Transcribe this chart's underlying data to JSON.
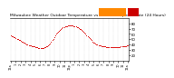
{
  "title": "Milwaukee Weather Outdoor Temperature vs Heat Index per Minute (24 Hours)",
  "legend_temp_color": "#cc0000",
  "legend_heat_color": "#ff8800",
  "bg_color": "#ffffff",
  "dot_color": "#dd0000",
  "dot_size": 0.6,
  "ylim": [
    10,
    90
  ],
  "yticks": [
    20,
    30,
    40,
    50,
    60,
    70,
    80
  ],
  "ytick_labels": [
    "20",
    "30",
    "40",
    "50",
    "60",
    "70",
    "80"
  ],
  "title_fontsize": 3.2,
  "tick_fontsize": 2.8,
  "xtick_labels": [
    "12a",
    "1",
    "2",
    "3",
    "4",
    "5",
    "6",
    "7",
    "8",
    "9",
    "10",
    "11",
    "12p",
    "1",
    "2",
    "3",
    "4",
    "5",
    "6",
    "7",
    "8",
    "9",
    "10",
    "11",
    "12a"
  ],
  "temp_data": [
    57,
    56,
    55,
    54,
    53,
    52,
    51,
    50,
    49,
    48,
    47,
    46,
    45,
    44,
    43,
    42,
    41,
    40,
    39,
    38,
    38,
    37,
    37,
    36,
    36,
    35,
    35,
    35,
    34,
    34,
    34,
    34,
    34,
    34,
    35,
    35,
    36,
    37,
    38,
    40,
    42,
    45,
    48,
    51,
    54,
    57,
    60,
    62,
    64,
    66,
    68,
    70,
    71,
    72,
    73,
    74,
    75,
    75,
    76,
    76,
    76,
    76,
    76,
    76,
    75,
    75,
    74,
    73,
    72,
    71,
    70,
    69,
    68,
    66,
    64,
    62,
    60,
    58,
    56,
    54,
    52,
    50,
    48,
    46,
    44,
    43,
    42,
    41,
    40,
    39,
    38,
    38,
    37,
    37,
    36,
    36,
    36,
    35,
    35,
    35,
    35,
    35,
    35,
    35,
    35,
    35,
    35,
    35,
    35,
    35,
    35,
    35,
    36,
    36,
    36,
    37,
    37,
    37,
    38,
    38
  ],
  "heat_data": [
    57,
    56,
    55,
    54,
    53,
    52,
    51,
    50,
    49,
    48,
    47,
    46,
    45,
    44,
    43,
    42,
    41,
    40,
    39,
    38,
    38,
    37,
    37,
    36,
    36,
    35,
    35,
    35,
    34,
    34,
    34,
    34,
    34,
    34,
    35,
    35,
    36,
    37,
    38,
    40,
    42,
    45,
    48,
    51,
    54,
    57,
    60,
    62,
    64,
    66,
    68,
    70,
    71,
    72,
    73,
    74,
    75,
    75,
    76,
    76,
    76,
    76,
    76,
    76,
    75,
    75,
    74,
    73,
    72,
    71,
    70,
    69,
    68,
    66,
    64,
    62,
    60,
    58,
    56,
    54,
    52,
    50,
    48,
    46,
    44,
    43,
    42,
    41,
    40,
    39,
    38,
    38,
    37,
    37,
    36,
    36,
    36,
    35,
    35,
    35,
    35,
    35,
    35,
    35,
    35,
    35,
    35,
    35,
    35,
    35,
    35,
    35,
    36,
    36,
    36,
    37,
    37,
    37,
    38,
    38
  ]
}
